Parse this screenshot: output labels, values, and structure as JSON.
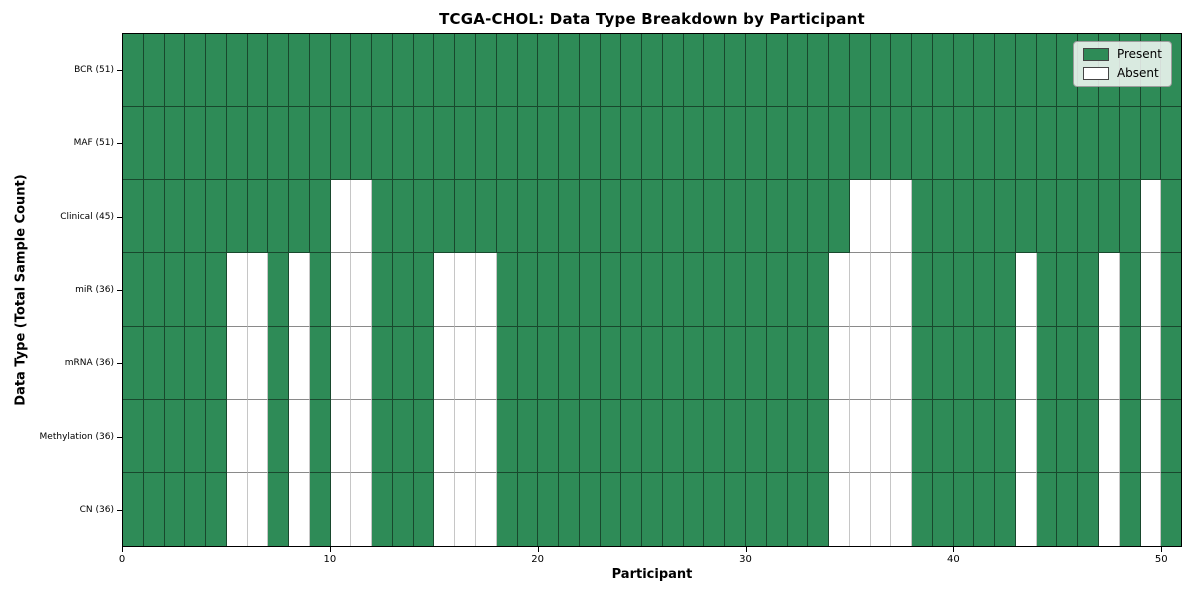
{
  "chart_data": {
    "type": "heatmap",
    "title": "TCGA-CHOL: Data Type Breakdown by Participant",
    "xlabel": "Participant",
    "ylabel": "Data Type (Total Sample Count)",
    "n_participants": 51,
    "xlim": [
      0,
      51
    ],
    "x_ticks": [
      0,
      10,
      20,
      30,
      40,
      50
    ],
    "grid": true,
    "legend_position": "upper right",
    "colors": {
      "present": "#2e8b57",
      "absent": "#ffffff"
    },
    "legend": [
      {
        "label": "Present",
        "color": "#2e8b57"
      },
      {
        "label": "Absent",
        "color": "#ffffff"
      }
    ],
    "rows": [
      {
        "label": "BCR (51)",
        "total_present": 51,
        "absent_participants": []
      },
      {
        "label": "MAF (51)",
        "total_present": 51,
        "absent_participants": []
      },
      {
        "label": "Clinical (45)",
        "total_present": 45,
        "absent_participants": [
          10,
          11,
          35,
          36,
          37,
          49
        ]
      },
      {
        "label": "miR (36)",
        "total_present": 36,
        "absent_participants": [
          5,
          6,
          8,
          10,
          11,
          15,
          16,
          17,
          34,
          35,
          36,
          37,
          43,
          47,
          49
        ]
      },
      {
        "label": "mRNA (36)",
        "total_present": 36,
        "absent_participants": [
          5,
          6,
          8,
          10,
          11,
          15,
          16,
          17,
          34,
          35,
          36,
          37,
          43,
          47,
          49
        ]
      },
      {
        "label": "Methylation (36)",
        "total_present": 36,
        "absent_participants": [
          5,
          6,
          8,
          10,
          11,
          15,
          16,
          17,
          34,
          35,
          36,
          37,
          43,
          47,
          49
        ]
      },
      {
        "label": "CN (36)",
        "total_present": 36,
        "absent_participants": [
          5,
          6,
          8,
          10,
          11,
          15,
          16,
          17,
          34,
          35,
          36,
          37,
          43,
          47,
          49
        ]
      }
    ]
  }
}
